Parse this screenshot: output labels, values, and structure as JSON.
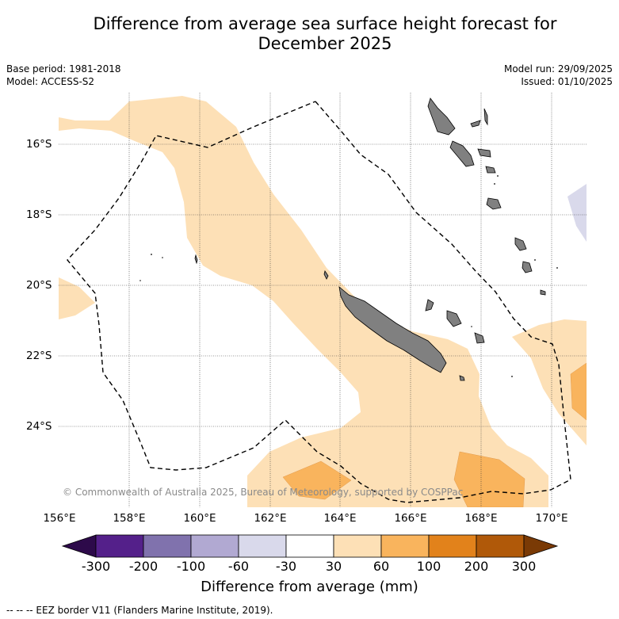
{
  "title_line1": "Difference from average sea surface height forecast for",
  "title_line2": "December 2025",
  "base_period": "Base period: 1981-2018",
  "model": "Model: ACCESS-S2",
  "model_run": "Model run: 29/09/2025",
  "issued": "Issued: 01/10/2025",
  "longitude_labels": [
    "156°E",
    "158°E",
    "160°E",
    "162°E",
    "164°E",
    "166°E",
    "168°E",
    "170°E"
  ],
  "latitude_labels": [
    "16°S",
    "18°S",
    "20°S",
    "22°S",
    "24°S"
  ],
  "copyright": "© Commonwealth of Australia 2025, Bureau of Meteorology, supported by COSPPac",
  "colorbar": {
    "ticks": [
      "-300",
      "-200",
      "-100",
      "-60",
      "-30",
      "30",
      "60",
      "100",
      "200",
      "300"
    ],
    "colors": {
      "below_-300": "#2d0a4a",
      "-300_-200": "#54208a",
      "-200_-100": "#8072ad",
      "-100_-60": "#b1a9d2",
      "-60_-30": "#d9d9eb",
      "-30_30": "#ffffff",
      "30_60": "#fde0b6",
      "60_100": "#f9b45d",
      "100_200": "#e2821b",
      "200_300": "#b05909",
      "above_300": "#7a3a05"
    },
    "label": "Difference from average (mm)"
  },
  "footer": "--  --  -- EEZ border V11 (Flanders Marine Institute, 2019)."
}
